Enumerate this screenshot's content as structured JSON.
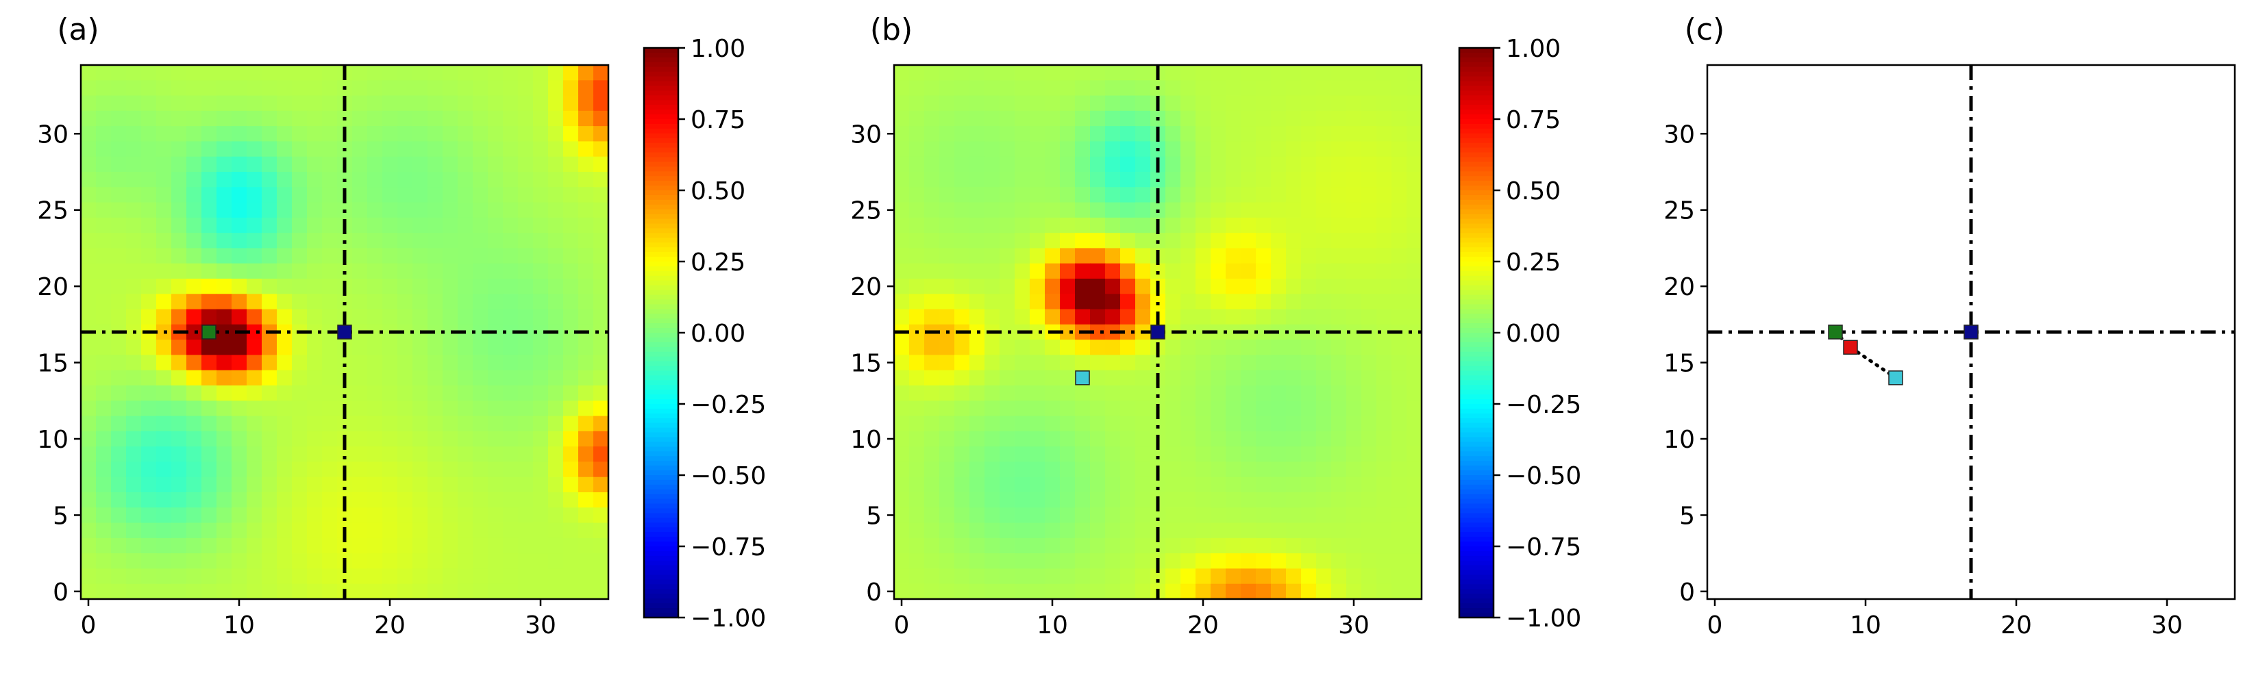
{
  "chart_data": [
    {
      "panel_label": "(a)",
      "type": "heatmap",
      "grid_size": 35,
      "xlim": [
        -0.5,
        34.5
      ],
      "ylim": [
        34.5,
        -0.5
      ],
      "x_ticks": [
        0,
        10,
        20,
        30
      ],
      "x_tick_labels": [
        "0",
        "10",
        "20",
        "30"
      ],
      "y_ticks": [
        0,
        5,
        10,
        15,
        20,
        25,
        30
      ],
      "y_tick_labels": [
        "0",
        "5",
        "10",
        "15",
        "20",
        "25",
        "30"
      ],
      "background_value": 0.12,
      "blobs": [
        {
          "x": 8.5,
          "y": 17.0,
          "amp": 0.9,
          "sx": 2.2,
          "sy": 1.7
        },
        {
          "x": 9.8,
          "y": 18.3,
          "amp": 0.3,
          "sx": 1.8,
          "sy": 1.6
        },
        {
          "x": 10.0,
          "y": 8.5,
          "amp": -0.33,
          "sx": 2.6,
          "sy": 3.2
        },
        {
          "x": 5.0,
          "y": 26.0,
          "amp": -0.27,
          "sx": 3.5,
          "sy": 3.5
        },
        {
          "x": 34.0,
          "y": 1.5,
          "amp": 0.5,
          "sx": 1.5,
          "sy": 2.5
        },
        {
          "x": 34.0,
          "y": 25.0,
          "amp": 0.48,
          "sx": 1.5,
          "sy": 2.0
        },
        {
          "x": 21.0,
          "y": 7.0,
          "amp": -0.12,
          "sx": 4.0,
          "sy": 4.0
        },
        {
          "x": 2.0,
          "y": 5.0,
          "amp": -0.1,
          "sx": 3.0,
          "sy": 3.0
        },
        {
          "x": 28.0,
          "y": 17.0,
          "amp": -0.12,
          "sx": 4.0,
          "sy": 5.0
        },
        {
          "x": 18.0,
          "y": 30.0,
          "amp": 0.08,
          "sx": 4.0,
          "sy": 4.0
        }
      ],
      "crosshair": {
        "x": 17,
        "y": 17
      },
      "markers": [
        {
          "x": 17,
          "y": 17,
          "color": "#0a0a8c"
        },
        {
          "x": 8,
          "y": 17,
          "color": "#1a7a1a"
        }
      ],
      "colorbar": {
        "vmin": -1.0,
        "vmax": 1.0,
        "ticks": [
          1.0,
          0.75,
          0.5,
          0.25,
          0.0,
          -0.25,
          -0.5,
          -0.75,
          -1.0
        ],
        "tick_labels": [
          "1.00",
          "0.75",
          "0.50",
          "0.25",
          "0.00",
          "−0.25",
          "−0.50",
          "−0.75",
          "−1.00"
        ],
        "colormap": "jet"
      }
    },
    {
      "panel_label": "(b)",
      "type": "heatmap",
      "grid_size": 35,
      "xlim": [
        -0.5,
        34.5
      ],
      "ylim": [
        34.5,
        -0.5
      ],
      "x_ticks": [
        0,
        10,
        20,
        30
      ],
      "x_tick_labels": [
        "0",
        "10",
        "20",
        "30"
      ],
      "y_ticks": [
        0,
        5,
        10,
        15,
        20,
        25,
        30
      ],
      "y_tick_labels": [
        "0",
        "5",
        "10",
        "15",
        "20",
        "25",
        "30"
      ],
      "background_value": 0.12,
      "blobs": [
        {
          "x": 12.5,
          "y": 14.3,
          "amp": 0.88,
          "sx": 2.0,
          "sy": 1.8
        },
        {
          "x": 14.2,
          "y": 16.0,
          "amp": 0.3,
          "sx": 1.8,
          "sy": 1.5
        },
        {
          "x": 15.0,
          "y": 6.0,
          "amp": -0.28,
          "sx": 2.3,
          "sy": 2.8
        },
        {
          "x": 2.5,
          "y": 17.5,
          "amp": 0.28,
          "sx": 2.0,
          "sy": 1.8
        },
        {
          "x": 23.0,
          "y": 34.0,
          "amp": 0.38,
          "sx": 3.0,
          "sy": 1.5
        },
        {
          "x": 22.5,
          "y": 13.0,
          "amp": 0.18,
          "sx": 2.0,
          "sy": 2.0
        },
        {
          "x": 8.0,
          "y": 27.0,
          "amp": -0.15,
          "sx": 4.0,
          "sy": 4.0
        },
        {
          "x": 25.0,
          "y": 22.0,
          "amp": -0.1,
          "sx": 4.0,
          "sy": 4.0
        },
        {
          "x": 5.0,
          "y": 6.0,
          "amp": -0.08,
          "sx": 4.0,
          "sy": 4.0
        },
        {
          "x": 30.0,
          "y": 8.0,
          "amp": 0.06,
          "sx": 4.0,
          "sy": 4.0
        }
      ],
      "crosshair": {
        "x": 17,
        "y": 17
      },
      "markers": [
        {
          "x": 17,
          "y": 17,
          "color": "#0a0a8c"
        },
        {
          "x": 12,
          "y": 14,
          "color": "#3ec8d8"
        }
      ],
      "colorbar": {
        "vmin": -1.0,
        "vmax": 1.0,
        "ticks": [
          1.0,
          0.75,
          0.5,
          0.25,
          0.0,
          -0.25,
          -0.5,
          -0.75,
          -1.0
        ],
        "tick_labels": [
          "1.00",
          "0.75",
          "0.50",
          "0.25",
          "0.00",
          "−0.25",
          "−0.50",
          "−0.75",
          "−1.00"
        ],
        "colormap": "jet"
      }
    },
    {
      "panel_label": "(c)",
      "type": "scatter",
      "xlim": [
        -0.5,
        34.5
      ],
      "ylim": [
        34.5,
        -0.5
      ],
      "x_ticks": [
        0,
        10,
        20,
        30
      ],
      "x_tick_labels": [
        "0",
        "10",
        "20",
        "30"
      ],
      "y_ticks": [
        0,
        5,
        10,
        15,
        20,
        25,
        30
      ],
      "y_tick_labels": [
        "0",
        "5",
        "10",
        "15",
        "20",
        "25",
        "30"
      ],
      "crosshair": {
        "x": 17,
        "y": 17
      },
      "path": [
        {
          "x": 8,
          "y": 17
        },
        {
          "x": 9,
          "y": 16
        },
        {
          "x": 12,
          "y": 14
        }
      ],
      "markers": [
        {
          "x": 17,
          "y": 17,
          "color": "#0a0a8c"
        },
        {
          "x": 8,
          "y": 17,
          "color": "#1a7a1a"
        },
        {
          "x": 9,
          "y": 16,
          "color": "#e01010"
        },
        {
          "x": 12,
          "y": 14,
          "color": "#3ec8d8"
        }
      ]
    }
  ]
}
